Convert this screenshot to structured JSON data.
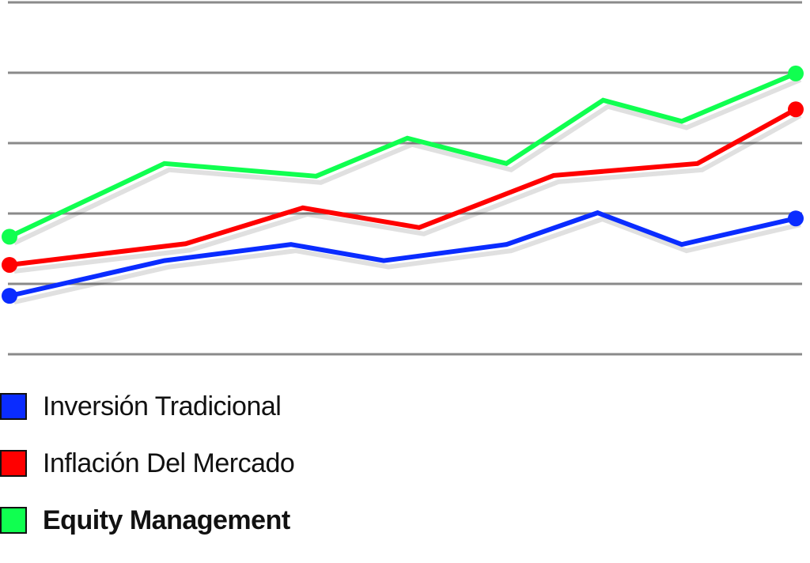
{
  "chart_data": {
    "type": "line",
    "title": "",
    "xlabel": "",
    "ylabel": "",
    "xlim": [
      0,
      100
    ],
    "ylim": [
      0,
      5
    ],
    "grid": true,
    "gridlines": [
      0,
      1,
      2,
      3,
      4,
      5
    ],
    "legend_placement": "bottom-left",
    "series": [
      {
        "name": "Inversión Tradicional",
        "color": "#0a2cff",
        "bold": false,
        "x": [
          0,
          19.7,
          35.8,
          47.6,
          63.2,
          74.8,
          85.5,
          100
        ],
        "y": [
          0.83,
          1.33,
          1.56,
          1.33,
          1.56,
          2.01,
          1.56,
          1.93
        ]
      },
      {
        "name": "Inflación Del Mercado",
        "color": "#ff0000",
        "bold": false,
        "x": [
          0,
          22.4,
          37.3,
          52.1,
          69.2,
          87.5,
          100
        ],
        "y": [
          1.27,
          1.57,
          2.08,
          1.8,
          2.54,
          2.71,
          3.48
        ]
      },
      {
        "name": "Equity Management",
        "color": "#10ff50",
        "bold": true,
        "x": [
          0,
          19.7,
          39.0,
          50.6,
          63.2,
          75.5,
          85.5,
          100
        ],
        "y": [
          1.67,
          2.71,
          2.53,
          3.07,
          2.71,
          3.61,
          3.31,
          3.99
        ]
      }
    ]
  }
}
